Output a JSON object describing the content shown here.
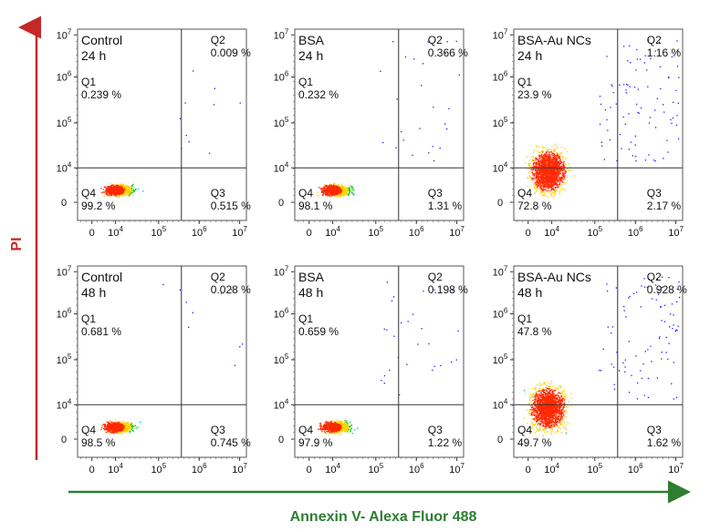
{
  "x_axis_title": "Annexin V- Alexa Fluor 488",
  "y_axis_title": "PI",
  "colors": {
    "x_arrow": "#2e7d32",
    "y_arrow": "#c62828",
    "frame": "#555555",
    "density_low": "#1a1aff",
    "density_mid": "#00d000",
    "density_high": "#ff2a00"
  },
  "chart_data": [
    {
      "type": "scatter",
      "title": "Control",
      "subtitle": "24 h",
      "x_scale": "biexponential",
      "y_scale": "biexponential",
      "x_ticks": [
        "0",
        "10",
        "10",
        "10",
        "10"
      ],
      "x_tick_exp": [
        "",
        "4",
        "5",
        "6",
        "7"
      ],
      "y_ticks": [
        "0",
        "10",
        "10",
        "10",
        "10"
      ],
      "y_tick_exp": [
        "",
        "4",
        "5",
        "6",
        "7"
      ],
      "quadrants": {
        "Q1": {
          "label": "Q1",
          "value": "0.239 %"
        },
        "Q2": {
          "label": "Q2",
          "value": "0.009 %"
        },
        "Q3": {
          "label": "Q3",
          "value": "0.515 %"
        },
        "Q4": {
          "label": "Q4",
          "value": "99.2 %"
        }
      }
    },
    {
      "type": "scatter",
      "title": "BSA",
      "subtitle": "24 h",
      "x_scale": "biexponential",
      "y_scale": "biexponential",
      "x_ticks": [
        "0",
        "10",
        "10",
        "10",
        "10"
      ],
      "x_tick_exp": [
        "",
        "4",
        "5",
        "6",
        "7"
      ],
      "y_ticks": [
        "0",
        "10",
        "10",
        "10",
        "10"
      ],
      "y_tick_exp": [
        "",
        "4",
        "5",
        "6",
        "7"
      ],
      "quadrants": {
        "Q1": {
          "label": "Q1",
          "value": "0.232 %"
        },
        "Q2": {
          "label": "Q2",
          "value": "0.366 %"
        },
        "Q3": {
          "label": "Q3",
          "value": "1.31 %"
        },
        "Q4": {
          "label": "Q4",
          "value": "98.1 %"
        }
      }
    },
    {
      "type": "scatter",
      "title": "BSA-Au NCs",
      "subtitle": "24 h",
      "x_scale": "biexponential",
      "y_scale": "biexponential",
      "x_ticks": [
        "0",
        "10",
        "10",
        "10",
        "10"
      ],
      "x_tick_exp": [
        "",
        "4",
        "5",
        "6",
        "7"
      ],
      "y_ticks": [
        "0",
        "10",
        "10",
        "10",
        "10"
      ],
      "y_tick_exp": [
        "",
        "4",
        "5",
        "6",
        "7"
      ],
      "quadrants": {
        "Q1": {
          "label": "Q1",
          "value": "23.9 %"
        },
        "Q2": {
          "label": "Q2",
          "value": "1.16 %"
        },
        "Q3": {
          "label": "Q3",
          "value": "2.17 %"
        },
        "Q4": {
          "label": "Q4",
          "value": "72.8 %"
        }
      }
    },
    {
      "type": "scatter",
      "title": "Control",
      "subtitle": "48 h",
      "x_scale": "biexponential",
      "y_scale": "biexponential",
      "x_ticks": [
        "0",
        "10",
        "10",
        "10",
        "10"
      ],
      "x_tick_exp": [
        "",
        "4",
        "5",
        "6",
        "7"
      ],
      "y_ticks": [
        "0",
        "10",
        "10",
        "10",
        "10"
      ],
      "y_tick_exp": [
        "",
        "4",
        "5",
        "6",
        "7"
      ],
      "quadrants": {
        "Q1": {
          "label": "Q1",
          "value": "0.681 %"
        },
        "Q2": {
          "label": "Q2",
          "value": "0.028 %"
        },
        "Q3": {
          "label": "Q3",
          "value": "0.745 %"
        },
        "Q4": {
          "label": "Q4",
          "value": "98.5 %"
        }
      }
    },
    {
      "type": "scatter",
      "title": "BSA",
      "subtitle": "48 h",
      "x_scale": "biexponential",
      "y_scale": "biexponential",
      "x_ticks": [
        "0",
        "10",
        "10",
        "10",
        "10"
      ],
      "x_tick_exp": [
        "",
        "4",
        "5",
        "6",
        "7"
      ],
      "y_ticks": [
        "0",
        "10",
        "10",
        "10",
        "10"
      ],
      "y_tick_exp": [
        "",
        "4",
        "5",
        "6",
        "7"
      ],
      "quadrants": {
        "Q1": {
          "label": "Q1",
          "value": "0.659 %"
        },
        "Q2": {
          "label": "Q2",
          "value": "0.198 %"
        },
        "Q3": {
          "label": "Q3",
          "value": "1.22 %"
        },
        "Q4": {
          "label": "Q4",
          "value": "97.9 %"
        }
      }
    },
    {
      "type": "scatter",
      "title": "BSA-Au NCs",
      "subtitle": "48 h",
      "x_scale": "biexponential",
      "y_scale": "biexponential",
      "x_ticks": [
        "0",
        "10",
        "10",
        "10",
        "10"
      ],
      "x_tick_exp": [
        "",
        "4",
        "5",
        "6",
        "7"
      ],
      "y_ticks": [
        "0",
        "10",
        "10",
        "10",
        "10"
      ],
      "y_tick_exp": [
        "",
        "4",
        "5",
        "6",
        "7"
      ],
      "quadrants": {
        "Q1": {
          "label": "Q1",
          "value": "47.8 %"
        },
        "Q2": {
          "label": "Q2",
          "value": "0.928 %"
        },
        "Q3": {
          "label": "Q3",
          "value": "1.62 %"
        },
        "Q4": {
          "label": "Q4",
          "value": "49.7 %"
        }
      }
    }
  ]
}
